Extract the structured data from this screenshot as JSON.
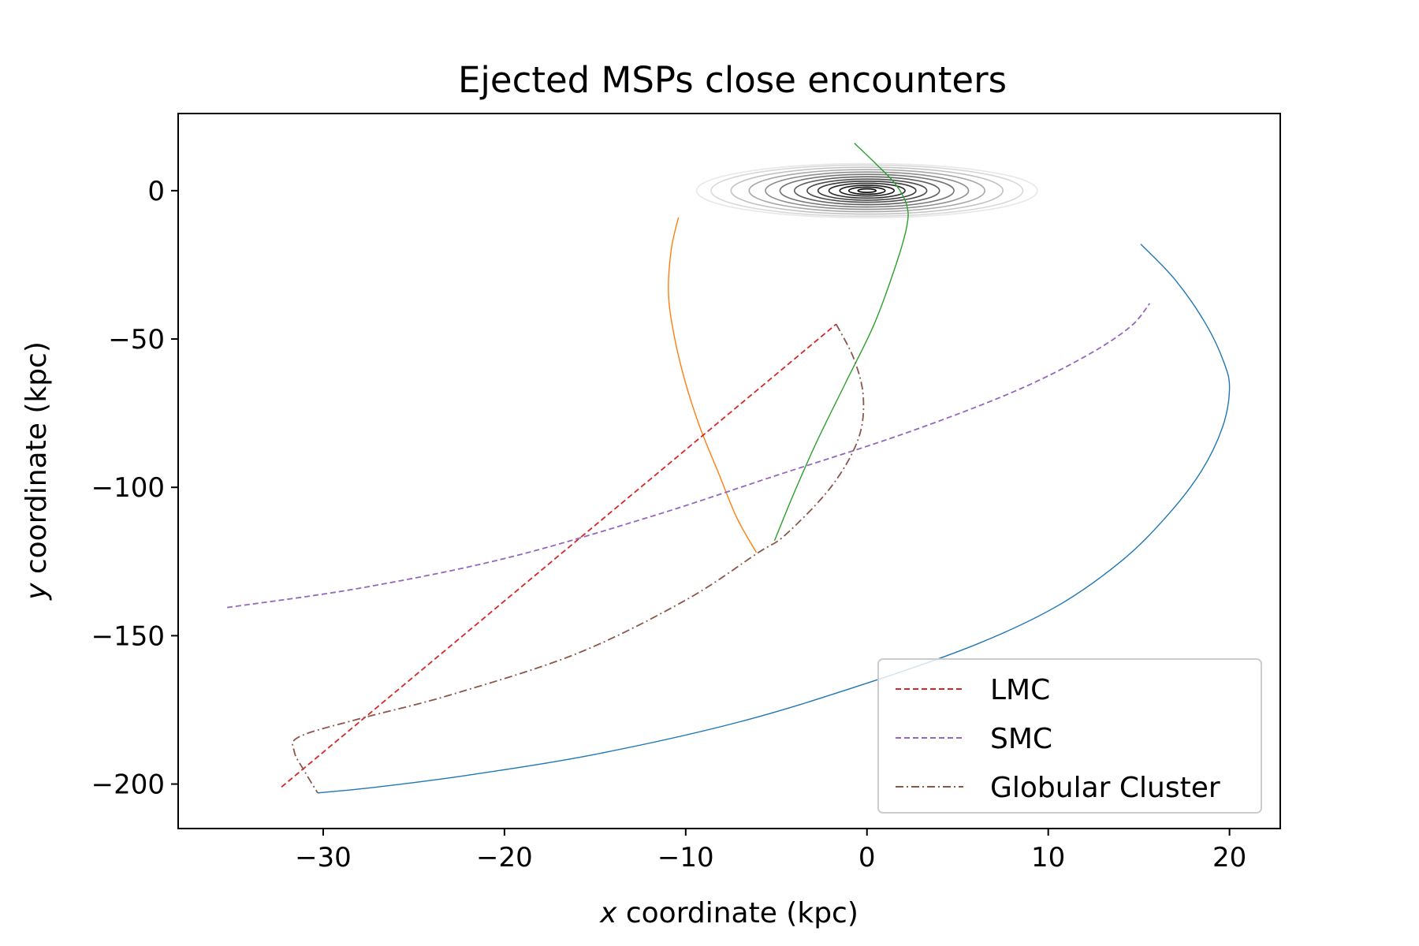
{
  "chart_data": {
    "type": "line",
    "title": "Ejected MSPs close encounters",
    "xlabel_var": "x",
    "xlabel_rest": " coordinate (kpc)",
    "ylabel_var": "y",
    "ylabel_rest": " coordinate (kpc)",
    "xlim": [
      -38,
      22.8
    ],
    "ylim": [
      -215,
      26
    ],
    "xticks": [
      -30,
      -20,
      -10,
      0,
      10,
      20
    ],
    "xtick_labels": [
      "−30",
      "−20",
      "−10",
      "0",
      "10",
      "20"
    ],
    "yticks": [
      0,
      -50,
      -100,
      -150,
      -200
    ],
    "ytick_labels": [
      "0",
      "−50",
      "−100",
      "−150",
      "−200"
    ],
    "grid": false,
    "legend_position": "lower-right",
    "galaxy": {
      "center": [
        0,
        0
      ],
      "semi_x": [
        0.5,
        1.0,
        1.5,
        2.1,
        2.7,
        3.3,
        4.0,
        4.8,
        5.6,
        6.5,
        7.5,
        8.6,
        9.4
      ],
      "semi_y": [
        0.6,
        1.2,
        1.8,
        2.5,
        3.2,
        3.9,
        4.7,
        5.5,
        6.3,
        7.1,
        7.9,
        8.6,
        9.1
      ],
      "colors": [
        "#000000",
        "#111111",
        "#1c1c1c",
        "#2a2a2a",
        "#3a3a3a",
        "#4c4c4c",
        "#606060",
        "#777777",
        "#8f8f8f",
        "#a8a8a8",
        "#c2c2c2",
        "#d8d8d8",
        "#e8e8e8"
      ]
    },
    "series": [
      {
        "color": "#1f77b4",
        "dash": "",
        "width": 1.4,
        "x": [
          15.1,
          17,
          18.7,
          19.7,
          20.0,
          19.6,
          18.4,
          16.5,
          14,
          10.5,
          6,
          0,
          -7,
          -15,
          -22,
          -27,
          -30.3
        ],
        "y": [
          -18,
          -30,
          -45,
          -58,
          -67,
          -80,
          -95,
          -110,
          -125,
          -140,
          -153,
          -166,
          -179,
          -190,
          -197,
          -201,
          -203
        ]
      },
      {
        "color": "#ff7f0e",
        "dash": "",
        "width": 1.4,
        "x": [
          -10.4,
          -10.8,
          -10.95,
          -10.6,
          -10,
          -9.2,
          -8.2,
          -7.2,
          -6.1
        ],
        "y": [
          -9,
          -20,
          -35,
          -50,
          -65,
          -80,
          -95,
          -110,
          -122
        ]
      },
      {
        "color": "#2ca02c",
        "dash": "",
        "width": 1.4,
        "x": [
          -0.7,
          0.5,
          1.6,
          2.2,
          2.2,
          1.6,
          0.4,
          -1.2,
          -2.8,
          -4.1,
          -5.1
        ],
        "y": [
          16,
          9,
          2,
          -5,
          -12,
          -25,
          -45,
          -65,
          -85,
          -103,
          -118
        ]
      },
      {
        "name": "LMC",
        "color": "#d62728",
        "dash": "7 4",
        "width": 1.8,
        "x": [
          -32.3,
          -1.7
        ],
        "y": [
          -201,
          -45
        ]
      },
      {
        "name": "SMC",
        "color": "#9467bd",
        "dash": "7 4",
        "width": 1.8,
        "x": [
          -35.3,
          -28,
          -20,
          -12,
          -5,
          2,
          8,
          12,
          14.5,
          15.6
        ],
        "y": [
          -140.5,
          -134,
          -124,
          -110,
          -96,
          -82,
          -68,
          -56,
          -46,
          -38
        ]
      },
      {
        "name": "Globular Cluster",
        "color": "#8c564b",
        "dash": "10 4 2 4",
        "width": 1.8,
        "x": [
          -1.7,
          -0.7,
          -0.2,
          -0.5,
          -2,
          -4.5,
          -6,
          -10,
          -16,
          -23,
          -28,
          -31.3,
          -31.6,
          -31,
          -30.3
        ],
        "y": [
          -45,
          -57,
          -70,
          -84,
          -100,
          -116,
          -122,
          -138,
          -156,
          -170,
          -178,
          -184,
          -189,
          -196,
          -203
        ]
      }
    ]
  }
}
